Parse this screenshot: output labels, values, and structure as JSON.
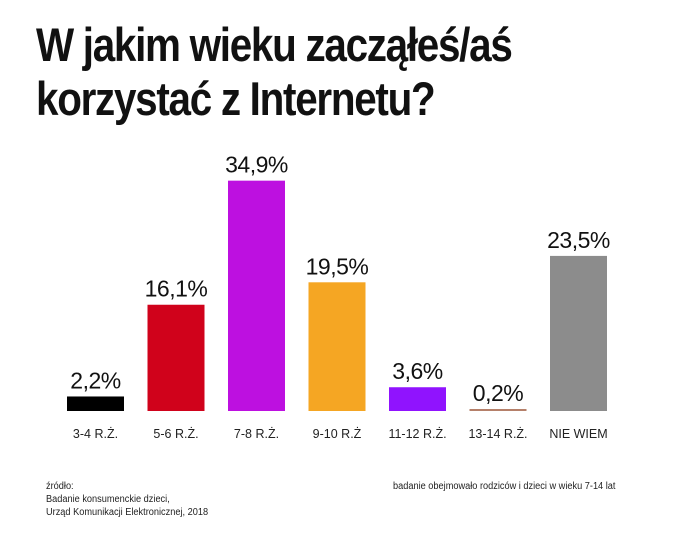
{
  "title_lines": [
    "W jakim wieku zacząłeś/aś",
    "korzystać z Internetu?"
  ],
  "chart_data": {
    "type": "bar",
    "title": "W jakim wieku zacząłeś/aś korzystać z Internetu?",
    "categories": [
      "3-4 R.Ż.",
      "5-6 R.Ż.",
      "7-8 R.Ż.",
      "9-10 R.Ż",
      "11-12 R.Ż.",
      "13-14 R.Ż.",
      "NIE WIEM"
    ],
    "values": [
      2.2,
      16.1,
      34.9,
      19.5,
      3.6,
      0.2,
      23.5
    ],
    "value_labels": [
      "2,2%",
      "16,1%",
      "34,9%",
      "19,5%",
      "3,6%",
      "0,2%",
      "23,5%"
    ],
    "colors": [
      "#000000",
      "#d0021b",
      "#bd10e0",
      "#f5a623",
      "#9013fe",
      "#b5806a",
      "#8c8c8c"
    ],
    "unit": "%",
    "grid": false,
    "legend": "none"
  },
  "source": {
    "label": "źródło:",
    "line1": "Badanie konsumenckie dzieci,",
    "line2": "Urząd Komunikacji Elektronicznej, 2018"
  },
  "note": "badanie obejmowało rodziców i dzieci w wieku 7-14 lat"
}
